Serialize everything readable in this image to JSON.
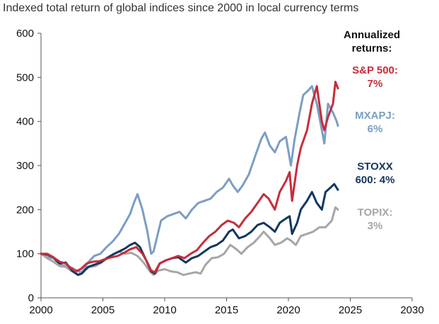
{
  "chart_data": {
    "type": "line",
    "title": "Indexed total return of global indices since 2000 in local currency terms",
    "xlabel": "",
    "ylabel": "",
    "xlim": [
      2000,
      2030
    ],
    "ylim": [
      0,
      600
    ],
    "x_ticks": [
      2000,
      2005,
      2010,
      2015,
      2020,
      2025,
      2030
    ],
    "y_ticks": [
      0,
      100,
      200,
      300,
      400,
      500,
      600
    ],
    "grid": false,
    "legend_title": "Annualized returns:",
    "series": [
      {
        "name": "MXAPJ",
        "label": "MXAPJ: 6%",
        "color": "#7b9ec3",
        "x": [
          2000,
          2000.5,
          2001,
          2001.5,
          2002,
          2002.5,
          2003,
          2003.3,
          2003.8,
          2004.3,
          2004.8,
          2005.3,
          2005.8,
          2006.3,
          2006.8,
          2007.2,
          2007.5,
          2007.8,
          2008.2,
          2008.6,
          2008.9,
          2009.1,
          2009.4,
          2009.7,
          2010.2,
          2010.7,
          2011.2,
          2011.7,
          2012.2,
          2012.7,
          2013.2,
          2013.7,
          2014.2,
          2014.7,
          2015.2,
          2015.5,
          2015.9,
          2016.3,
          2016.8,
          2017.3,
          2017.8,
          2018.1,
          2018.5,
          2018.9,
          2019.3,
          2019.8,
          2020.2,
          2020.5,
          2020.9,
          2021.2,
          2021.6,
          2021.9,
          2022.3,
          2022.7,
          2022.9,
          2023.2,
          2023.6,
          2023.9,
          2024.0
        ],
        "y": [
          100,
          92,
          90,
          75,
          72,
          68,
          60,
          58,
          80,
          95,
          100,
          115,
          128,
          145,
          170,
          190,
          215,
          235,
          200,
          150,
          100,
          105,
          140,
          175,
          185,
          190,
          195,
          180,
          200,
          215,
          220,
          225,
          240,
          250,
          270,
          255,
          240,
          255,
          280,
          320,
          360,
          375,
          345,
          330,
          355,
          365,
          300,
          360,
          420,
          460,
          470,
          480,
          440,
          380,
          350,
          440,
          420,
          400,
          390
        ]
      },
      {
        "name": "S&P 500",
        "label": "S&P 500: 7%",
        "color": "#c62d3a",
        "x": [
          2000,
          2000.5,
          2001,
          2001.5,
          2002,
          2002.4,
          2002.8,
          2003.2,
          2003.7,
          2004.2,
          2004.7,
          2005.2,
          2005.7,
          2006.2,
          2006.7,
          2007.2,
          2007.7,
          2008.2,
          2008.6,
          2008.9,
          2009.2,
          2009.6,
          2010.1,
          2010.6,
          2011.1,
          2011.6,
          2012.1,
          2012.6,
          2013.1,
          2013.6,
          2014.1,
          2014.6,
          2015.1,
          2015.6,
          2016.0,
          2016.5,
          2017.0,
          2017.5,
          2018.0,
          2018.4,
          2018.9,
          2019.3,
          2019.8,
          2020.1,
          2020.3,
          2020.7,
          2021.0,
          2021.5,
          2021.9,
          2022.3,
          2022.7,
          2022.9,
          2023.2,
          2023.6,
          2023.8,
          2024.0
        ],
        "y": [
          100,
          100,
          92,
          82,
          78,
          68,
          60,
          65,
          78,
          82,
          83,
          88,
          92,
          95,
          102,
          110,
          115,
          100,
          80,
          62,
          58,
          78,
          85,
          90,
          95,
          90,
          100,
          108,
          125,
          140,
          150,
          165,
          175,
          170,
          160,
          180,
          195,
          215,
          235,
          225,
          200,
          240,
          265,
          285,
          220,
          300,
          340,
          380,
          440,
          480,
          400,
          380,
          410,
          440,
          490,
          475
        ]
      },
      {
        "name": "STOXX 600",
        "label": "STOXX 600: 4%",
        "color": "#14365f",
        "x": [
          2000,
          2000.5,
          2001,
          2001.5,
          2002,
          2002.5,
          2003.0,
          2003.3,
          2003.8,
          2004.3,
          2004.8,
          2005.3,
          2005.8,
          2006.3,
          2006.8,
          2007.2,
          2007.6,
          2008.0,
          2008.5,
          2008.9,
          2009.2,
          2009.6,
          2010.1,
          2010.6,
          2011.1,
          2011.7,
          2012.2,
          2012.7,
          2013.2,
          2013.7,
          2014.2,
          2014.7,
          2015.2,
          2015.5,
          2016.0,
          2016.5,
          2017.0,
          2017.5,
          2018.0,
          2018.5,
          2018.9,
          2019.3,
          2019.8,
          2020.1,
          2020.3,
          2020.7,
          2021.0,
          2021.5,
          2021.9,
          2022.3,
          2022.7,
          2023.0,
          2023.4,
          2023.7,
          2024.0
        ],
        "y": [
          100,
          98,
          92,
          78,
          80,
          62,
          52,
          55,
          70,
          75,
          80,
          90,
          98,
          105,
          112,
          120,
          125,
          115,
          85,
          60,
          55,
          78,
          85,
          90,
          92,
          80,
          90,
          95,
          105,
          115,
          120,
          130,
          150,
          155,
          135,
          140,
          150,
          165,
          170,
          160,
          150,
          170,
          180,
          185,
          145,
          170,
          200,
          220,
          240,
          215,
          200,
          240,
          250,
          258,
          245
        ]
      },
      {
        "name": "TOPIX",
        "label": "TOPIX: 3%",
        "color": "#a6a6a6",
        "x": [
          2000,
          2000.5,
          2001,
          2001.5,
          2002,
          2002.5,
          2003.0,
          2003.4,
          2003.9,
          2004.4,
          2004.9,
          2005.4,
          2005.9,
          2006.3,
          2006.8,
          2007.3,
          2007.8,
          2008.3,
          2008.8,
          2009.1,
          2009.5,
          2010.0,
          2010.5,
          2011.0,
          2011.5,
          2012.0,
          2012.5,
          2012.9,
          2013.3,
          2013.8,
          2014.3,
          2014.8,
          2015.3,
          2015.8,
          2016.2,
          2016.7,
          2017.2,
          2017.7,
          2018.0,
          2018.5,
          2018.9,
          2019.4,
          2019.9,
          2020.2,
          2020.6,
          2021.0,
          2021.5,
          2022.0,
          2022.5,
          2023.0,
          2023.5,
          2023.8,
          2024.0
        ],
        "y": [
          100,
          90,
          82,
          72,
          70,
          60,
          52,
          60,
          70,
          72,
          80,
          90,
          100,
          105,
          100,
          102,
          95,
          80,
          60,
          52,
          62,
          65,
          60,
          58,
          52,
          55,
          58,
          55,
          75,
          90,
          92,
          100,
          120,
          110,
          100,
          115,
          125,
          140,
          150,
          135,
          120,
          125,
          135,
          130,
          120,
          140,
          145,
          150,
          160,
          160,
          175,
          205,
          200
        ]
      }
    ]
  }
}
